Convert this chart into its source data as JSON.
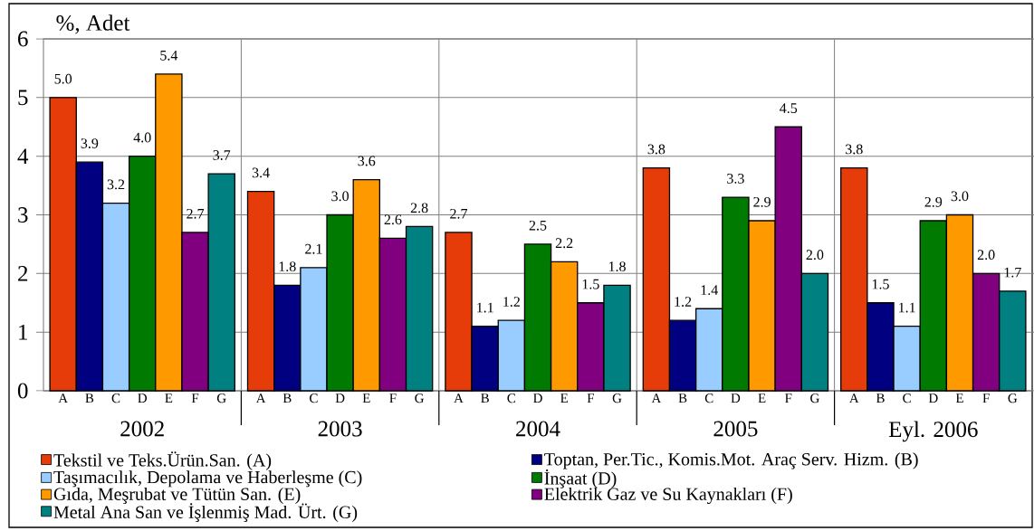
{
  "chart_data": {
    "type": "bar",
    "ylabel": "%, Adet",
    "categories": [
      "2002",
      "2003",
      "2004",
      "2005",
      "Eyl. 2006"
    ],
    "series": [
      {
        "name": "Tekstil ve Teks.Ürün.San. (A)",
        "color": "#e63c0a",
        "values": [
          5.0,
          3.4,
          2.7,
          3.8,
          3.8
        ],
        "value_labels": [
          "5.0",
          "3.4",
          "2.7",
          "3.8",
          "3.8"
        ]
      },
      {
        "name": "Toptan, Per.Tic., Komis.Mot. Araç Serv. Hizm. (B)",
        "color": "#000080",
        "values": [
          3.9,
          1.8,
          1.1,
          1.2,
          1.5
        ],
        "value_labels": [
          "3.9",
          "1.8",
          "1.1",
          "1.2",
          "1.5"
        ]
      },
      {
        "name": "Taşımacılık, Depolama ve Haberleşme (C)",
        "color": "#99ccff",
        "values": [
          3.2,
          2.1,
          1.2,
          1.4,
          1.1
        ],
        "value_labels": [
          "3.2",
          "2.1",
          "1.2",
          "1.4",
          "1.1"
        ]
      },
      {
        "name": "İnşaat (D)",
        "color": "#007a00",
        "values": [
          4.0,
          3.0,
          2.5,
          3.3,
          2.9
        ],
        "value_labels": [
          "4.0",
          "3.0",
          "2.5",
          "3.3",
          "2.9"
        ]
      },
      {
        "name": "Gıda, Meşrubat ve Tütün San. (E)",
        "color": "#ff9900",
        "values": [
          5.4,
          3.6,
          2.2,
          2.9,
          3.0
        ],
        "value_labels": [
          "5.4",
          "3.6",
          "2.2",
          "2.9",
          "3.0"
        ]
      },
      {
        "name": "Elektrik Gaz ve Su Kaynakları (F)",
        "color": "#800080",
        "values": [
          2.7,
          2.6,
          1.5,
          4.5,
          2.0
        ],
        "value_labels": [
          "2.7",
          "2.6",
          "1.5",
          "4.5",
          "2.0"
        ]
      },
      {
        "name": "Metal Ana San ve İşlenmiş Mad. Ürt. (G)",
        "color": "#008080",
        "values": [
          3.7,
          2.8,
          1.8,
          2.0,
          1.7
        ],
        "value_labels": [
          "3.7",
          "2.8",
          "1.8",
          "2.0",
          "1.7"
        ]
      }
    ],
    "ylim": [
      0,
      6
    ],
    "yticks": [
      0,
      1,
      2,
      3,
      4,
      5,
      6
    ],
    "grid": true,
    "legend": "bottom",
    "annotations": [
      "A",
      "B",
      "C",
      "D",
      "E",
      "F",
      "G",
      "A",
      "B",
      "C",
      "D",
      "E",
      "F",
      "G",
      "A",
      "B",
      "C",
      "D",
      "E",
      "F",
      "G",
      "A",
      "B",
      "C",
      "D",
      "E",
      "F",
      "G",
      "A",
      "B",
      "C",
      "D",
      "E",
      "F",
      "G"
    ]
  }
}
